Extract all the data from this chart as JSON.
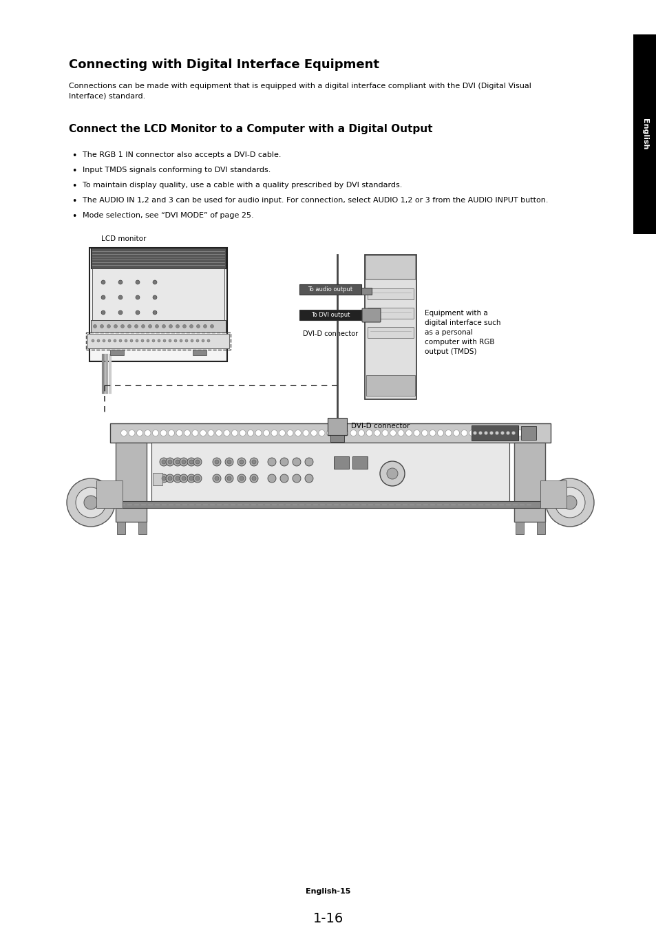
{
  "title": "Connecting with Digital Interface Equipment",
  "subtitle_text": "Connections can be made with equipment that is equipped with a digital interface compliant with the DVI (Digital Visual\nInterface) standard.",
  "section2_title": "Connect the LCD Monitor to a Computer with a Digital Output",
  "bullets": [
    "The RGB 1 IN connector also accepts a DVI-D cable.",
    "Input TMDS signals conforming to DVI standards.",
    "To maintain display quality, use a cable with a quality prescribed by DVI standards.",
    "The AUDIO IN 1,2 and 3 can be used for audio input. For connection, select AUDIO 1,2 or 3 from the AUDIO INPUT button.",
    "Mode selection, see “DVI MODE” of page 25."
  ],
  "label_lcd_monitor": "LCD monitor",
  "label_to_audio": "To audio output",
  "label_to_dvi": "To DVI output",
  "label_dvi_connector1": "DVI-D connector",
  "label_dvi_connector2": "DVI-D connector",
  "label_equipment": "Equipment with a\ndigital interface such\nas a personal\ncomputer with RGB\noutput (TMDS)",
  "footer": "English-15",
  "page_number": "1-16",
  "sidebar_text": "English",
  "bg_color": "#ffffff",
  "text_color": "#000000",
  "sidebar_bg": "#000000",
  "sidebar_text_color": "#ffffff"
}
